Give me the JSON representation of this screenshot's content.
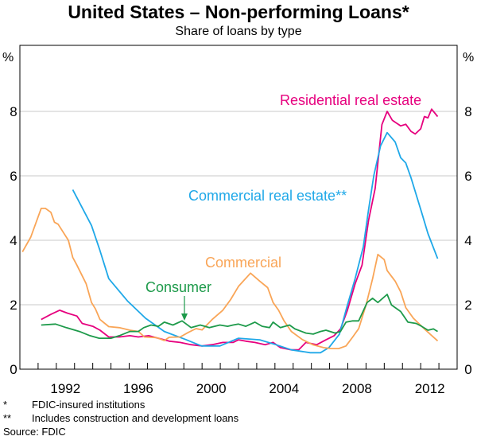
{
  "title": "United States – Non-performing Loans*",
  "subtitle": "Share of loans by type",
  "footnotes": [
    {
      "mark": "*",
      "text": "FDIC-insured institutions"
    },
    {
      "mark": "**",
      "text": "Includes construction and development loans"
    }
  ],
  "source": "Source: FDIC",
  "chart_data": {
    "type": "line",
    "title": "United States – Non-performing Loans*",
    "subtitle": "Share of loans by type",
    "ylabel_left": "%",
    "ylabel_right": "%",
    "xlim": [
      1990,
      2014
    ],
    "ylim": [
      0,
      9
    ],
    "yticks": [
      0,
      2,
      4,
      6,
      8
    ],
    "xtick_labels": [
      "1992",
      "1996",
      "2000",
      "2004",
      "2008",
      "2012"
    ],
    "grid": true,
    "series": [
      {
        "name": "Residential real estate",
        "color": "#e6007e",
        "points": [
          [
            1991.17,
            1.54
          ],
          [
            1991.7,
            1.7
          ],
          [
            1992.18,
            1.83
          ],
          [
            1992.6,
            1.74
          ],
          [
            1993.13,
            1.65
          ],
          [
            1993.42,
            1.42
          ],
          [
            1994.0,
            1.33
          ],
          [
            1994.4,
            1.21
          ],
          [
            1994.88,
            1.0
          ],
          [
            1995.46,
            1.0
          ],
          [
            1996.04,
            1.04
          ],
          [
            1996.5,
            1.0
          ],
          [
            1997.07,
            1.04
          ],
          [
            1997.6,
            0.96
          ],
          [
            1998.2,
            0.87
          ],
          [
            1998.8,
            0.83
          ],
          [
            1999.39,
            0.76
          ],
          [
            2000.0,
            0.72
          ],
          [
            2000.55,
            0.76
          ],
          [
            2001.14,
            0.83
          ],
          [
            2001.7,
            0.83
          ],
          [
            2002.0,
            0.91
          ],
          [
            2002.4,
            0.87
          ],
          [
            2002.9,
            0.83
          ],
          [
            2003.46,
            0.76
          ],
          [
            2003.9,
            0.83
          ],
          [
            2004.3,
            0.67
          ],
          [
            2004.9,
            0.6
          ],
          [
            2005.3,
            0.6
          ],
          [
            2005.7,
            0.83
          ],
          [
            2006.3,
            0.76
          ],
          [
            2006.8,
            0.91
          ],
          [
            2007.25,
            1.04
          ],
          [
            2007.6,
            1.25
          ],
          [
            2007.98,
            1.83
          ],
          [
            2008.4,
            2.65
          ],
          [
            2008.78,
            3.23
          ],
          [
            2009.14,
            4.62
          ],
          [
            2009.5,
            5.61
          ],
          [
            2009.87,
            7.59
          ],
          [
            2010.16,
            8.0
          ],
          [
            2010.45,
            7.72
          ],
          [
            2010.9,
            7.55
          ],
          [
            2011.18,
            7.6
          ],
          [
            2011.47,
            7.38
          ],
          [
            2011.7,
            7.3
          ],
          [
            2012.0,
            7.46
          ],
          [
            2012.2,
            7.84
          ],
          [
            2012.4,
            7.8
          ],
          [
            2012.6,
            8.07
          ],
          [
            2012.93,
            7.84
          ]
        ]
      },
      {
        "name": "Commercial real estate**",
        "color": "#1fa8e8",
        "points": [
          [
            1992.9,
            5.57
          ],
          [
            1993.93,
            4.46
          ],
          [
            1994.37,
            3.73
          ],
          [
            1994.88,
            2.81
          ],
          [
            1995.9,
            2.12
          ],
          [
            1996.9,
            1.58
          ],
          [
            1997.93,
            1.17
          ],
          [
            1999.1,
            0.92
          ],
          [
            1999.97,
            0.72
          ],
          [
            2000.98,
            0.72
          ],
          [
            2002.0,
            0.96
          ],
          [
            2003.17,
            0.91
          ],
          [
            2004.05,
            0.76
          ],
          [
            2004.9,
            0.6
          ],
          [
            2005.94,
            0.51
          ],
          [
            2006.5,
            0.51
          ],
          [
            2006.96,
            0.67
          ],
          [
            2007.54,
            1.09
          ],
          [
            2007.98,
            1.99
          ],
          [
            2008.4,
            2.81
          ],
          [
            2008.85,
            3.8
          ],
          [
            2009.14,
            4.95
          ],
          [
            2009.43,
            6.02
          ],
          [
            2009.8,
            6.93
          ],
          [
            2010.16,
            7.34
          ],
          [
            2010.6,
            7.05
          ],
          [
            2010.9,
            6.56
          ],
          [
            2011.18,
            6.4
          ],
          [
            2011.47,
            5.94
          ],
          [
            2012.05,
            4.87
          ],
          [
            2012.4,
            4.21
          ],
          [
            2012.93,
            3.43
          ]
        ]
      },
      {
        "name": "Commercial",
        "color": "#f9a557",
        "points": [
          [
            1990.14,
            3.64
          ],
          [
            1990.6,
            4.1
          ],
          [
            1991.17,
            4.99
          ],
          [
            1991.4,
            4.99
          ],
          [
            1991.7,
            4.87
          ],
          [
            1991.9,
            4.56
          ],
          [
            1992.1,
            4.5
          ],
          [
            1992.66,
            4.0
          ],
          [
            1992.9,
            3.47
          ],
          [
            1993.13,
            3.23
          ],
          [
            1993.64,
            2.65
          ],
          [
            1993.93,
            2.07
          ],
          [
            1994.15,
            1.87
          ],
          [
            1994.4,
            1.54
          ],
          [
            1994.88,
            1.32
          ],
          [
            1995.46,
            1.29
          ],
          [
            1996.04,
            1.21
          ],
          [
            1996.5,
            1.17
          ],
          [
            1996.84,
            1.0
          ],
          [
            1997.5,
            0.98
          ],
          [
            1997.93,
            0.89
          ],
          [
            1998.2,
            0.99
          ],
          [
            1998.8,
            1.0
          ],
          [
            1999.24,
            1.14
          ],
          [
            1999.67,
            1.26
          ],
          [
            2000.0,
            1.22
          ],
          [
            2000.55,
            1.54
          ],
          [
            2001.14,
            1.83
          ],
          [
            2001.57,
            2.16
          ],
          [
            2002.0,
            2.57
          ],
          [
            2002.66,
            2.98
          ],
          [
            2003.17,
            2.73
          ],
          [
            2003.6,
            2.53
          ],
          [
            2003.9,
            2.07
          ],
          [
            2004.2,
            1.83
          ],
          [
            2004.5,
            1.5
          ],
          [
            2004.9,
            1.17
          ],
          [
            2005.5,
            0.92
          ],
          [
            2006.08,
            0.76
          ],
          [
            2006.67,
            0.67
          ],
          [
            2007.1,
            0.64
          ],
          [
            2007.5,
            0.64
          ],
          [
            2007.9,
            0.72
          ],
          [
            2008.27,
            1.0
          ],
          [
            2008.6,
            1.26
          ],
          [
            2009.0,
            1.99
          ],
          [
            2009.36,
            2.81
          ],
          [
            2009.65,
            3.56
          ],
          [
            2010.0,
            3.4
          ],
          [
            2010.16,
            3.06
          ],
          [
            2010.6,
            2.73
          ],
          [
            2010.9,
            2.4
          ],
          [
            2011.18,
            1.91
          ],
          [
            2011.6,
            1.58
          ],
          [
            2012.2,
            1.25
          ],
          [
            2012.93,
            0.88
          ]
        ]
      },
      {
        "name": "Consumer",
        "color": "#1d9a4a",
        "points": [
          [
            1991.17,
            1.37
          ],
          [
            1991.96,
            1.4
          ],
          [
            1992.55,
            1.29
          ],
          [
            1993.27,
            1.17
          ],
          [
            1993.85,
            1.04
          ],
          [
            1994.35,
            0.96
          ],
          [
            1995.0,
            0.96
          ],
          [
            1995.46,
            1.04
          ],
          [
            1996.04,
            1.17
          ],
          [
            1996.5,
            1.17
          ],
          [
            1996.8,
            1.29
          ],
          [
            1997.2,
            1.37
          ],
          [
            1997.6,
            1.33
          ],
          [
            1997.93,
            1.46
          ],
          [
            1998.4,
            1.37
          ],
          [
            1998.9,
            1.5
          ],
          [
            1999.4,
            1.29
          ],
          [
            1999.9,
            1.37
          ],
          [
            2000.4,
            1.29
          ],
          [
            2000.98,
            1.37
          ],
          [
            2001.4,
            1.33
          ],
          [
            2001.7,
            1.37
          ],
          [
            2002.0,
            1.4
          ],
          [
            2002.4,
            1.33
          ],
          [
            2002.9,
            1.46
          ],
          [
            2003.3,
            1.33
          ],
          [
            2003.7,
            1.29
          ],
          [
            2003.9,
            1.46
          ],
          [
            2004.3,
            1.29
          ],
          [
            2004.8,
            1.37
          ],
          [
            2005.1,
            1.25
          ],
          [
            2005.7,
            1.12
          ],
          [
            2006.1,
            1.09
          ],
          [
            2006.5,
            1.17
          ],
          [
            2006.8,
            1.21
          ],
          [
            2007.3,
            1.12
          ],
          [
            2007.6,
            1.17
          ],
          [
            2007.9,
            1.46
          ],
          [
            2008.27,
            1.5
          ],
          [
            2008.6,
            1.5
          ],
          [
            2009.06,
            2.07
          ],
          [
            2009.36,
            2.2
          ],
          [
            2009.65,
            2.07
          ],
          [
            2010.16,
            2.32
          ],
          [
            2010.4,
            1.99
          ],
          [
            2010.9,
            1.79
          ],
          [
            2011.3,
            1.46
          ],
          [
            2011.75,
            1.42
          ],
          [
            2012.05,
            1.33
          ],
          [
            2012.4,
            1.21
          ],
          [
            2012.7,
            1.25
          ],
          [
            2012.93,
            1.17
          ]
        ]
      }
    ]
  }
}
